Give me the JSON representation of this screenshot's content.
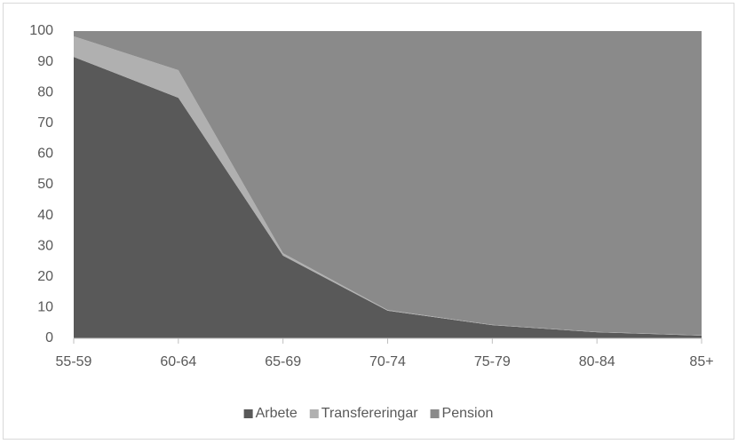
{
  "chart_data": {
    "type": "stacked_area",
    "categories": [
      "55-59",
      "60-64",
      "65-69",
      "70-74",
      "75-79",
      "80-84",
      "85+"
    ],
    "series": [
      {
        "name": "Arbete",
        "color": "#595959",
        "values": [
          91.6,
          78.3,
          26.9,
          9,
          4.3,
          2,
          0.9
        ]
      },
      {
        "name": "Transfereringar",
        "color": "#b0b0b0",
        "values": [
          6.7,
          9,
          0.8,
          0.2,
          0.1,
          0.1,
          0.1
        ]
      },
      {
        "name": "Pension",
        "color": "#8a8a8a",
        "values": [
          1.7,
          12.7,
          72.3,
          90.8,
          95.6,
          97.9,
          99
        ]
      }
    ],
    "ylim": [
      0,
      100
    ],
    "yticks": [
      0,
      10,
      20,
      30,
      40,
      50,
      60,
      70,
      80,
      90,
      100
    ],
    "legend": "bottom"
  }
}
